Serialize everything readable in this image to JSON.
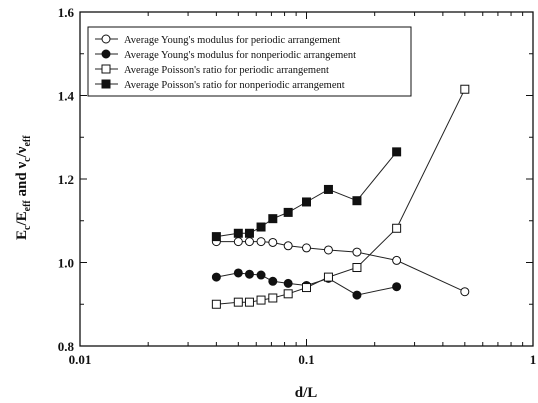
{
  "chart_data": {
    "type": "line",
    "xlabel": "d/L",
    "ylabel_main": "E",
    "ylabel_sub1": "c",
    "ylabel_mid": "/E",
    "ylabel_sub2": "eff",
    "ylabel_and": " and ",
    "ylabel_nu": "ν",
    "ylabel_sub3": "c",
    "ylabel_slash": "/ν",
    "ylabel_sub4": "eff",
    "x_scale": "log",
    "xlim": [
      0.01,
      1
    ],
    "ylim": [
      0.8,
      1.6
    ],
    "x_ticks": [
      0.01,
      0.1,
      1
    ],
    "x_tick_labels": [
      "0.01",
      "0.1",
      "1"
    ],
    "y_ticks": [
      0.8,
      1.0,
      1.2,
      1.4,
      1.6
    ],
    "y_tick_labels": [
      "0.8",
      "1.0",
      "1.2",
      "1.4",
      "1.6"
    ],
    "grid": false,
    "legend_position": "top-left",
    "series": [
      {
        "name": "Average Young's modulus for periodic arrangement",
        "marker": "circle-open",
        "x": [
          0.04,
          0.05,
          0.056,
          0.063,
          0.071,
          0.083,
          0.1,
          0.125,
          0.167,
          0.25,
          0.5
        ],
        "y": [
          1.05,
          1.05,
          1.05,
          1.05,
          1.048,
          1.04,
          1.035,
          1.03,
          1.025,
          1.005,
          0.93
        ]
      },
      {
        "name": "Average Young's modulus for nonperiodic arrangement",
        "marker": "circle-filled",
        "x": [
          0.04,
          0.05,
          0.056,
          0.063,
          0.071,
          0.083,
          0.1,
          0.125,
          0.167,
          0.25
        ],
        "y": [
          0.965,
          0.975,
          0.972,
          0.97,
          0.955,
          0.95,
          0.945,
          0.962,
          0.922,
          0.942
        ]
      },
      {
        "name": "Average Poisson's ratio for periodic arrangement",
        "marker": "square-open",
        "x": [
          0.04,
          0.05,
          0.056,
          0.063,
          0.071,
          0.083,
          0.1,
          0.125,
          0.167,
          0.25,
          0.5
        ],
        "y": [
          0.9,
          0.905,
          0.905,
          0.91,
          0.915,
          0.925,
          0.94,
          0.965,
          0.988,
          1.082,
          1.415
        ]
      },
      {
        "name": "Average Poisson's ratio for nonperiodic arrangement",
        "marker": "square-filled",
        "x": [
          0.04,
          0.05,
          0.056,
          0.063,
          0.071,
          0.083,
          0.1,
          0.125,
          0.167,
          0.25
        ],
        "y": [
          1.062,
          1.07,
          1.07,
          1.085,
          1.105,
          1.12,
          1.145,
          1.175,
          1.148,
          1.265
        ]
      }
    ]
  }
}
